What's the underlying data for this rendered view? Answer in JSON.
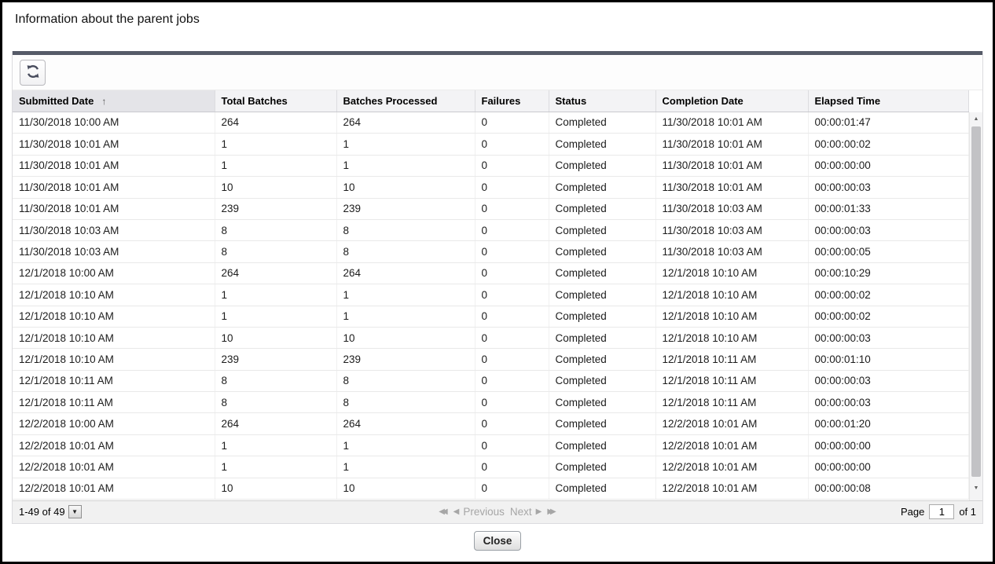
{
  "title": "Information about the parent jobs",
  "toolbar": {
    "refresh_icon": "refresh"
  },
  "table": {
    "columns": [
      {
        "label": "Submitted Date",
        "sorted": true,
        "sort_indicator": "↑"
      },
      {
        "label": "Total Batches"
      },
      {
        "label": "Batches Processed"
      },
      {
        "label": "Failures"
      },
      {
        "label": "Status"
      },
      {
        "label": "Completion Date"
      },
      {
        "label": "Elapsed Time"
      }
    ],
    "rows": [
      [
        "11/30/2018 10:00 AM",
        "264",
        "264",
        "0",
        "Completed",
        "11/30/2018 10:01 AM",
        "00:00:01:47"
      ],
      [
        "11/30/2018 10:01 AM",
        "1",
        "1",
        "0",
        "Completed",
        "11/30/2018 10:01 AM",
        "00:00:00:02"
      ],
      [
        "11/30/2018 10:01 AM",
        "1",
        "1",
        "0",
        "Completed",
        "11/30/2018 10:01 AM",
        "00:00:00:00"
      ],
      [
        "11/30/2018 10:01 AM",
        "10",
        "10",
        "0",
        "Completed",
        "11/30/2018 10:01 AM",
        "00:00:00:03"
      ],
      [
        "11/30/2018 10:01 AM",
        "239",
        "239",
        "0",
        "Completed",
        "11/30/2018 10:03 AM",
        "00:00:01:33"
      ],
      [
        "11/30/2018 10:03 AM",
        "8",
        "8",
        "0",
        "Completed",
        "11/30/2018 10:03 AM",
        "00:00:00:03"
      ],
      [
        "11/30/2018 10:03 AM",
        "8",
        "8",
        "0",
        "Completed",
        "11/30/2018 10:03 AM",
        "00:00:00:05"
      ],
      [
        "12/1/2018 10:00 AM",
        "264",
        "264",
        "0",
        "Completed",
        "12/1/2018 10:10 AM",
        "00:00:10:29"
      ],
      [
        "12/1/2018 10:10 AM",
        "1",
        "1",
        "0",
        "Completed",
        "12/1/2018 10:10 AM",
        "00:00:00:02"
      ],
      [
        "12/1/2018 10:10 AM",
        "1",
        "1",
        "0",
        "Completed",
        "12/1/2018 10:10 AM",
        "00:00:00:02"
      ],
      [
        "12/1/2018 10:10 AM",
        "10",
        "10",
        "0",
        "Completed",
        "12/1/2018 10:10 AM",
        "00:00:00:03"
      ],
      [
        "12/1/2018 10:10 AM",
        "239",
        "239",
        "0",
        "Completed",
        "12/1/2018 10:11 AM",
        "00:00:01:10"
      ],
      [
        "12/1/2018 10:11 AM",
        "8",
        "8",
        "0",
        "Completed",
        "12/1/2018 10:11 AM",
        "00:00:00:03"
      ],
      [
        "12/1/2018 10:11 AM",
        "8",
        "8",
        "0",
        "Completed",
        "12/1/2018 10:11 AM",
        "00:00:00:03"
      ],
      [
        "12/2/2018 10:00 AM",
        "264",
        "264",
        "0",
        "Completed",
        "12/2/2018 10:01 AM",
        "00:00:01:20"
      ],
      [
        "12/2/2018 10:01 AM",
        "1",
        "1",
        "0",
        "Completed",
        "12/2/2018 10:01 AM",
        "00:00:00:00"
      ],
      [
        "12/2/2018 10:01 AM",
        "1",
        "1",
        "0",
        "Completed",
        "12/2/2018 10:01 AM",
        "00:00:00:00"
      ],
      [
        "12/2/2018 10:01 AM",
        "10",
        "10",
        "0",
        "Completed",
        "12/2/2018 10:01 AM",
        "00:00:00:08"
      ]
    ]
  },
  "scrollbar": {
    "up_icon": "▲",
    "down_icon": "▼"
  },
  "footer": {
    "range_label": "1-49 of 49",
    "dropdown_icon": "▼",
    "first_icon": "◀◀",
    "prev_icon": "◀",
    "prev_label": "Previous",
    "next_label": "Next",
    "next_icon": "▶",
    "last_icon": "▶▶",
    "page_label": "Page",
    "page_value": "1",
    "of_label": "of 1"
  },
  "close_button": {
    "label": "Close"
  },
  "colors": {
    "panel_top_bar": "#565b68",
    "header_bg": "#f3f3f5",
    "sorted_header_bg": "#e4e4e8",
    "footer_bg": "#f1f1f1",
    "disabled_pagination_text": "#a6a6a6",
    "refresh_icon_color": "#474b5c"
  }
}
